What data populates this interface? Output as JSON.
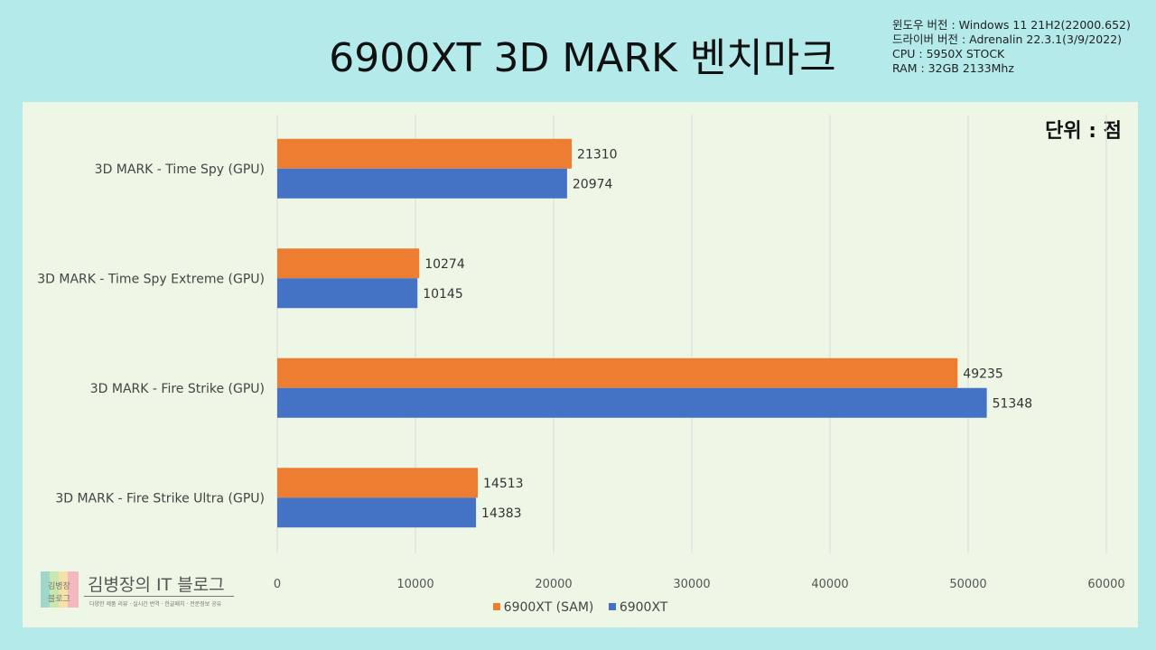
{
  "header": {
    "title": "6900XT 3D MARK 벤치마크",
    "info_lines": [
      "윈도우 버전 : Windows 11 21H2(22000.652)",
      "드라이버 버전 : Adrenalin 22.3.1(3/9/2022)",
      "CPU : 5950X STOCK",
      "RAM : 32GB 2133Mhz"
    ]
  },
  "unit_label": "단위 : 점",
  "logo": {
    "name": "김병장의 IT 블로그",
    "block_text_1": "김병장",
    "block_text_2": "블로그",
    "subtitle": "다양한 제품 리뷰 · 실시간 번역 · 한글패치 · 전문정보 공유"
  },
  "colors": {
    "sam": "#ed7d31",
    "base": "#4472c4",
    "grid": "#d9d9d9",
    "background": "#b4eaea",
    "panel": "#eef6e6"
  },
  "chart_data": {
    "type": "bar",
    "orientation": "horizontal",
    "title": "6900XT 3D MARK 벤치마크",
    "categories": [
      "3D MARK -  Time Spy (GPU)",
      "3D MARK - Time Spy Extreme (GPU)",
      "3D MARK - Fire Strike (GPU)",
      "3D MARK - Fire Strike Ultra (GPU)"
    ],
    "series": [
      {
        "name": "6900XT (SAM)",
        "values": [
          21310,
          10274,
          49235,
          14513
        ]
      },
      {
        "name": "6900XT",
        "values": [
          20974,
          10145,
          51348,
          14383
        ]
      }
    ],
    "xlim": [
      0,
      60000
    ],
    "xticks": [
      0,
      10000,
      20000,
      30000,
      40000,
      50000,
      60000
    ],
    "grid": true,
    "legend": "bottom"
  }
}
